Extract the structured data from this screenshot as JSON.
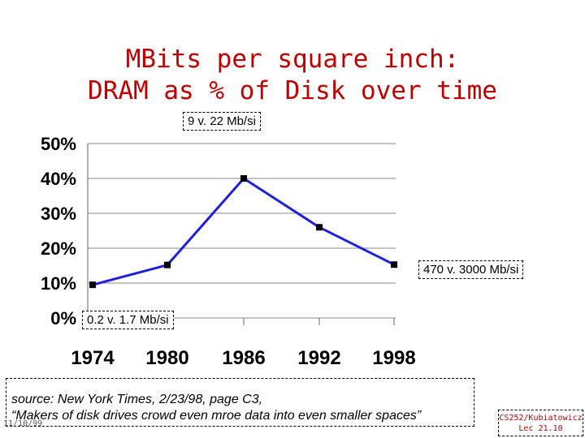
{
  "slide": {
    "title_line1": "MBits per square inch:",
    "title_line2": "DRAM as % of Disk over time",
    "source_line1": "source: New York Times, 2/23/98, page C3,",
    "source_line2": "“Makers of disk drives crowd even mroe data into even smaller spaces”",
    "date": "11/10/99",
    "course_line1": "CS252/Kubiatowicz",
    "course_line2": "Lec 21.10",
    "title_color": "#c00000",
    "line_color": "#1f1fdc"
  },
  "chart_data": {
    "type": "line",
    "categories": [
      "1974",
      "1980",
      "1986",
      "1992",
      "1998"
    ],
    "series": [
      {
        "values": [
          9.5,
          15.2,
          40,
          26,
          15.3
        ]
      }
    ],
    "ylim": [
      0,
      50
    ],
    "yticks": [
      "0%",
      "10%",
      "20%",
      "30%",
      "40%",
      "50%"
    ],
    "grid": true,
    "annotations": [
      {
        "text": "9  v. 22 Mb/si"
      },
      {
        "text": "470 v. 3000 Mb/si"
      },
      {
        "text": "0.2  v. 1.7 Mb/si"
      }
    ]
  }
}
